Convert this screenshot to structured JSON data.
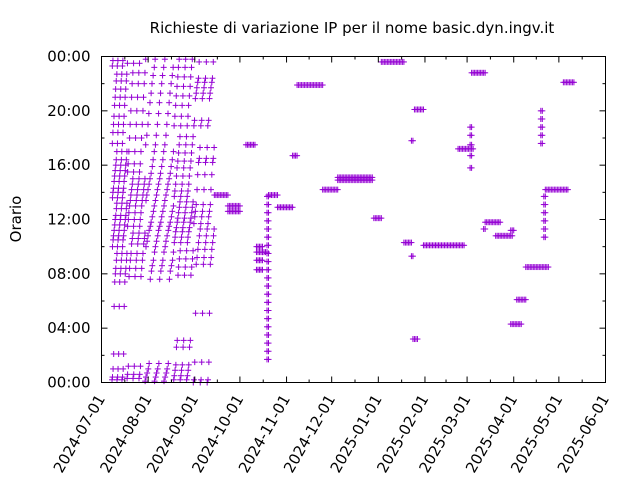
{
  "chart_data": {
    "type": "scatter",
    "title": "Richieste di variazione IP per il nome basic.dyn.ingv.it",
    "ylabel": "Orario",
    "xlabel": "",
    "x_tick_labels": [
      "2024-07-01",
      "2024-08-01",
      "2024-09-01",
      "2024-10-01",
      "2024-11-01",
      "2024-12-01",
      "2025-01-01",
      "2025-02-01",
      "2025-03-01",
      "2025-04-01",
      "2025-05-01",
      "2025-06-01"
    ],
    "y_tick_labels": [
      "00:00",
      "04:00",
      "08:00",
      "12:00",
      "16:00",
      "20:00",
      "00:00"
    ],
    "xlim": [
      "2024-07-01",
      "2025-06-01"
    ],
    "ylim_hours": [
      0,
      24
    ],
    "marker": "plus",
    "color": "#9400d3",
    "grid": false,
    "legend": "none",
    "clusters": [
      {
        "from": "2024-07-08",
        "to": "2024-07-18",
        "hours": [
          0.2,
          0.4,
          1.0,
          2.1,
          5.6,
          7.4,
          8.0,
          8.4,
          9.0,
          9.5,
          10.0,
          10.5,
          10.8,
          11.2,
          11.6,
          12.0,
          12.3,
          12.8,
          13.2,
          13.6,
          14.0,
          14.3,
          14.8,
          15.2,
          15.6,
          16.0,
          16.4,
          17.0,
          17.6,
          18.4,
          19.0,
          19.6,
          20.4,
          21.0,
          21.6,
          22.2,
          22.7,
          23.3,
          23.7
        ]
      },
      {
        "from": "2024-07-18",
        "to": "2024-07-30",
        "hours": [
          0.3,
          0.6,
          1.2,
          7.8,
          8.4,
          9.0,
          9.5,
          10.2,
          10.6,
          11.0,
          11.5,
          12.0,
          12.5,
          13.0,
          13.4,
          13.8,
          14.2,
          14.6,
          15.0,
          15.5,
          16.1,
          17.0,
          18.0,
          19.0,
          20.0,
          21.0,
          22.0,
          22.8,
          23.5
        ]
      },
      {
        "from": "2024-07-30",
        "to": "2024-08-18",
        "hours": [
          0.1,
          0.4,
          0.7,
          1.0,
          1.4,
          7.6,
          8.2,
          8.6,
          9.0,
          9.6,
          10.0,
          10.4,
          10.8,
          11.2,
          11.5,
          11.8,
          12.2,
          12.6,
          13.0,
          13.4,
          13.8,
          14.2,
          14.6,
          15.0,
          15.4,
          15.9,
          16.4,
          17.0,
          17.5,
          18.2,
          19.0,
          19.8,
          20.6,
          21.3,
          22.0,
          22.6,
          23.2,
          23.8
        ]
      },
      {
        "from": "2024-08-18",
        "to": "2024-08-31",
        "hours": [
          0.2,
          0.5,
          0.9,
          1.3,
          2.6,
          3.1,
          7.9,
          8.5,
          9.1,
          9.7,
          10.3,
          10.7,
          11.1,
          11.4,
          11.8,
          12.1,
          12.5,
          12.9,
          13.3,
          13.7,
          14.1,
          14.6,
          15.2,
          15.8,
          16.3,
          16.9,
          17.5,
          18.1,
          18.9,
          19.6,
          20.4,
          21.1,
          21.8,
          22.5,
          23.2,
          23.8
        ]
      },
      {
        "from": "2024-08-31",
        "to": "2024-09-14",
        "hours": [
          0.0,
          0.2,
          1.5,
          5.1,
          8.7,
          9.2,
          9.8,
          10.3,
          10.8,
          11.3,
          11.7,
          12.2,
          12.6,
          13.1,
          14.2,
          15.3,
          16.2,
          16.5,
          17.3,
          18.9,
          19.3,
          20.9,
          21.3,
          21.7,
          22.1,
          22.4,
          23.6
        ]
      },
      {
        "from": "2024-09-14",
        "to": "2024-09-23",
        "hours": [
          13.8
        ]
      },
      {
        "from": "2024-09-23",
        "to": "2024-10-01",
        "hours": [
          12.6,
          13.0
        ]
      },
      {
        "from": "2024-10-05",
        "to": "2024-10-11",
        "hours": [
          17.5
        ]
      },
      {
        "from": "2024-10-12",
        "to": "2024-10-16",
        "hours": [
          8.3,
          9.0,
          9.6,
          10.0
        ]
      },
      {
        "from": "2024-10-16",
        "to": "2024-10-19",
        "hours": [
          9.6
        ]
      },
      {
        "from": "2024-10-19",
        "to": "2024-10-20",
        "hours": [
          1.7,
          2.3,
          2.9,
          3.5,
          4.1,
          4.7,
          5.3,
          5.9,
          6.5,
          7.1,
          7.7,
          8.3,
          8.9,
          9.5,
          10.1,
          10.7,
          11.3,
          11.9,
          12.5,
          13.1,
          13.7
        ]
      },
      {
        "from": "2024-10-20",
        "to": "2024-10-26",
        "hours": [
          13.8
        ]
      },
      {
        "from": "2024-10-26",
        "to": "2024-11-05",
        "hours": [
          12.9
        ]
      },
      {
        "from": "2024-11-05",
        "to": "2024-11-08",
        "hours": [
          16.7
        ]
      },
      {
        "from": "2024-11-08",
        "to": "2024-11-25",
        "hours": [
          21.9
        ]
      },
      {
        "from": "2024-11-25",
        "to": "2024-12-05",
        "hours": [
          14.2
        ]
      },
      {
        "from": "2024-12-05",
        "to": "2024-12-28",
        "hours": [
          14.9,
          15.1
        ]
      },
      {
        "from": "2024-12-29",
        "to": "2025-01-03",
        "hours": [
          12.1
        ]
      },
      {
        "from": "2025-01-03",
        "to": "2025-01-18",
        "hours": [
          23.6
        ]
      },
      {
        "from": "2025-01-18",
        "to": "2025-01-23",
        "hours": [
          10.3
        ]
      },
      {
        "from": "2025-01-23",
        "to": "2025-01-24",
        "hours": [
          9.3,
          17.8
        ]
      },
      {
        "from": "2025-01-24",
        "to": "2025-01-27",
        "hours": [
          3.2
        ]
      },
      {
        "from": "2025-01-25",
        "to": "2025-01-31",
        "hours": [
          20.1
        ]
      },
      {
        "from": "2025-01-31",
        "to": "2025-02-27",
        "hours": [
          10.1
        ]
      },
      {
        "from": "2025-02-23",
        "to": "2025-03-05",
        "hours": [
          17.2
        ]
      },
      {
        "from": "2025-03-03",
        "to": "2025-03-04",
        "hours": [
          15.8,
          16.7,
          17.5,
          18.2,
          18.8
        ]
      },
      {
        "from": "2025-03-04",
        "to": "2025-03-13",
        "hours": [
          22.8
        ]
      },
      {
        "from": "2025-03-12",
        "to": "2025-03-13",
        "hours": [
          11.3
        ]
      },
      {
        "from": "2025-03-13",
        "to": "2025-03-23",
        "hours": [
          11.8
        ]
      },
      {
        "from": "2025-03-20",
        "to": "2025-03-31",
        "hours": [
          10.8
        ]
      },
      {
        "from": "2025-03-30",
        "to": "2025-04-01",
        "hours": [
          11.2
        ]
      },
      {
        "from": "2025-03-30",
        "to": "2025-04-06",
        "hours": [
          4.3
        ]
      },
      {
        "from": "2025-04-03",
        "to": "2025-04-09",
        "hours": [
          6.1
        ]
      },
      {
        "from": "2025-04-09",
        "to": "2025-04-24",
        "hours": [
          8.5
        ]
      },
      {
        "from": "2025-04-19",
        "to": "2025-04-20",
        "hours": [
          17.6,
          18.2,
          18.8,
          19.4,
          20.0
        ]
      },
      {
        "from": "2025-04-21",
        "to": "2025-04-22",
        "hours": [
          10.7,
          11.3,
          11.9,
          12.5,
          13.1,
          13.7
        ]
      },
      {
        "from": "2025-04-22",
        "to": "2025-05-07",
        "hours": [
          14.2
        ]
      },
      {
        "from": "2025-05-04",
        "to": "2025-05-11",
        "hours": [
          22.1
        ]
      }
    ]
  }
}
